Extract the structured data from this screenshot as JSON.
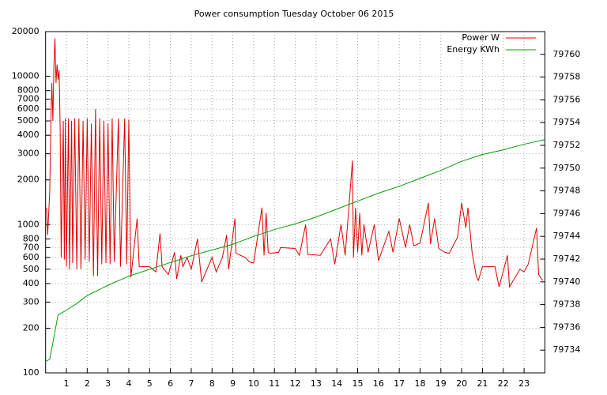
{
  "chart_data": {
    "type": "line",
    "title": "Power consumption Tuesday October 06 2015",
    "xlim": [
      0,
      24
    ],
    "xticks": [
      1,
      2,
      3,
      4,
      5,
      6,
      7,
      8,
      9,
      10,
      11,
      12,
      13,
      14,
      15,
      16,
      17,
      18,
      19,
      20,
      21,
      22,
      23
    ],
    "ylim": [
      100,
      20000
    ],
    "log_y": true,
    "yticks": [
      100,
      200,
      300,
      400,
      500,
      600,
      700,
      800,
      1000,
      2000,
      3000,
      4000,
      5000,
      6000,
      7000,
      8000,
      10000,
      20000
    ],
    "y2lim": [
      79732,
      79762
    ],
    "y2ticks": [
      79734,
      79736,
      79738,
      79740,
      79742,
      79744,
      79746,
      79748,
      79750,
      79752,
      79754,
      79756,
      79758,
      79760
    ],
    "grid": true,
    "legend": "top-right",
    "series": [
      {
        "name": "Power W",
        "color": "#e00000",
        "x": [
          0.05,
          0.1,
          0.2,
          0.25,
          0.3,
          0.35,
          0.4,
          0.45,
          0.5,
          0.55,
          0.6,
          0.65,
          0.7,
          0.75,
          0.85,
          0.9,
          0.95,
          1.0,
          1.1,
          1.15,
          1.25,
          1.3,
          1.4,
          1.5,
          1.6,
          1.7,
          1.8,
          1.9,
          2.0,
          2.1,
          2.2,
          2.3,
          2.4,
          2.5,
          2.6,
          2.7,
          2.8,
          2.9,
          3.0,
          3.1,
          3.2,
          3.3,
          3.5,
          3.6,
          3.8,
          3.9,
          4.0,
          4.1,
          4.4,
          4.5,
          5.0,
          5.3,
          5.5,
          5.6,
          5.9,
          6.2,
          6.3,
          6.5,
          6.6,
          6.8,
          7.0,
          7.3,
          7.5,
          8.0,
          8.2,
          8.5,
          8.7,
          8.8,
          9.1,
          9.15,
          9.6,
          9.8,
          10.0,
          10.4,
          10.5,
          10.6,
          10.7,
          10.8,
          11.2,
          11.3,
          12.0,
          12.2,
          12.5,
          12.6,
          13.2,
          13.7,
          13.9,
          14.2,
          14.4,
          14.75,
          14.8,
          14.9,
          15.0,
          15.1,
          15.2,
          15.3,
          15.5,
          15.8,
          16.0,
          16.5,
          16.7,
          17.0,
          17.3,
          17.5,
          17.7,
          18.0,
          18.4,
          18.5,
          18.7,
          18.9,
          19.2,
          19.4,
          19.8,
          20.0,
          20.2,
          20.3,
          20.5,
          20.7,
          20.8,
          21.0,
          21.6,
          21.8,
          22.2,
          22.3,
          22.8,
          23.0,
          23.2,
          23.6,
          23.7,
          23.9
        ],
        "values": [
          1300,
          850,
          1700,
          4500,
          9000,
          5000,
          12000,
          18000,
          9000,
          12000,
          9500,
          11000,
          4500,
          600,
          5000,
          580,
          5200,
          520,
          5200,
          500,
          5000,
          550,
          5200,
          500,
          5200,
          500,
          5000,
          580,
          5200,
          560,
          4800,
          450,
          6000,
          450,
          5200,
          540,
          5000,
          550,
          4800,
          540,
          5200,
          560,
          5200,
          520,
          5200,
          540,
          5100,
          440,
          1100,
          520,
          520,
          480,
          870,
          520,
          460,
          650,
          430,
          620,
          520,
          600,
          500,
          800,
          410,
          600,
          480,
          600,
          850,
          500,
          1100,
          640,
          600,
          560,
          550,
          1300,
          620,
          1200,
          650,
          640,
          650,
          700,
          690,
          620,
          1000,
          630,
          620,
          800,
          540,
          1000,
          620,
          2700,
          600,
          1300,
          650,
          1200,
          620,
          1000,
          650,
          1000,
          570,
          900,
          650,
          1100,
          700,
          1000,
          720,
          750,
          1400,
          740,
          1100,
          690,
          650,
          640,
          820,
          1400,
          950,
          1300,
          650,
          450,
          420,
          520,
          520,
          380,
          620,
          380,
          500,
          480,
          540,
          950,
          460,
          420
        ]
      },
      {
        "name": "Energy KWh",
        "color": "#00a000",
        "axis": "y2",
        "x": [
          0,
          0.2,
          0.6,
          0.9,
          1.5,
          2,
          3,
          4,
          5,
          6,
          7,
          8,
          9,
          10,
          11,
          12,
          13,
          14,
          15,
          16,
          17,
          18,
          19,
          20,
          20.5,
          21,
          22,
          23,
          24
        ],
        "values": [
          79733.0,
          79733.2,
          79737.1,
          79737.4,
          79738.1,
          79738.8,
          79739.7,
          79740.5,
          79741.1,
          79741.7,
          79742.3,
          79742.8,
          79743.3,
          79744.0,
          79744.6,
          79745.1,
          79745.7,
          79746.4,
          79747.1,
          79747.8,
          79748.4,
          79749.1,
          79749.8,
          79750.6,
          79750.9,
          79751.2,
          79751.6,
          79752.1,
          79752.5
        ]
      }
    ]
  }
}
